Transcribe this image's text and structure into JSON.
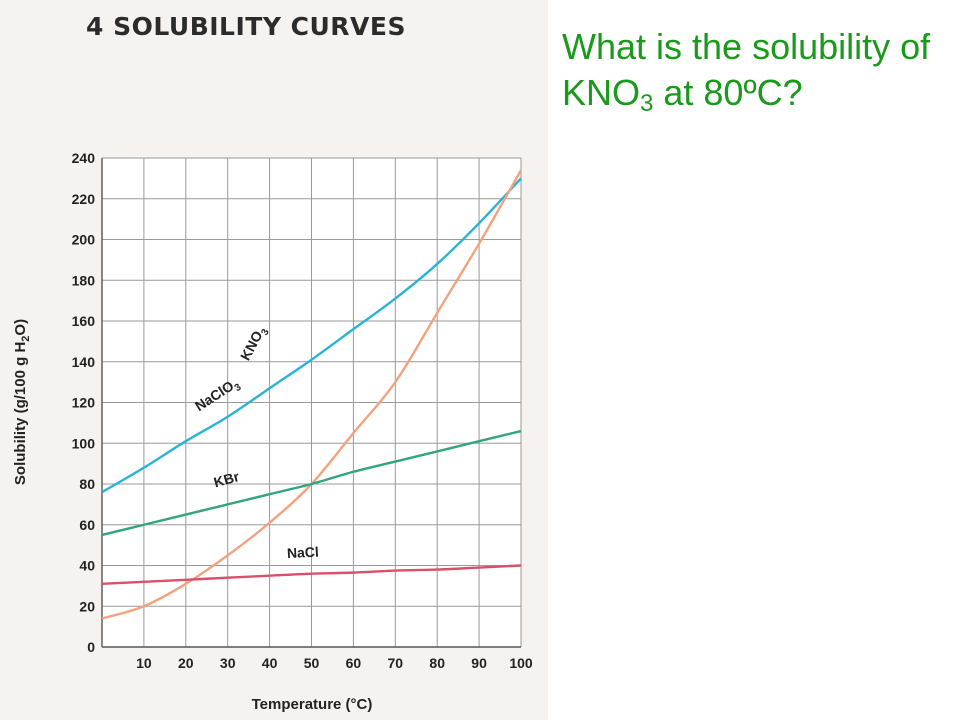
{
  "slide": {
    "question_parts": [
      "What is the solubility of KNO",
      "3",
      " at 80ºC?"
    ]
  },
  "chart_data": {
    "type": "line",
    "title": "4  SOLUBILITY CURVES",
    "xlabel": "Temperature (°C)",
    "ylabel_parts": [
      "Solubility (g/100 g H",
      "2",
      "O)"
    ],
    "xlim": [
      0,
      100
    ],
    "ylim": [
      0,
      240
    ],
    "x_ticks": [
      10,
      20,
      30,
      40,
      50,
      60,
      70,
      80,
      90,
      100
    ],
    "y_ticks": [
      0,
      20,
      40,
      60,
      80,
      100,
      120,
      140,
      160,
      180,
      200,
      220,
      240
    ],
    "grid": true,
    "series": [
      {
        "name": "NaClO3",
        "label_parts": [
          "NaClO",
          "3"
        ],
        "color": "#2ab3d6",
        "x": [
          0,
          10,
          20,
          30,
          40,
          50,
          60,
          70,
          80,
          90,
          100
        ],
        "y": [
          76,
          88,
          101,
          113,
          127,
          141,
          156,
          171,
          188,
          208,
          230
        ]
      },
      {
        "name": "KNO3",
        "label_parts": [
          "KNO",
          "3"
        ],
        "color": "#f2a37e",
        "x": [
          0,
          10,
          20,
          30,
          40,
          50,
          60,
          70,
          80,
          90,
          100
        ],
        "y": [
          14,
          20,
          31,
          45,
          61,
          80,
          105,
          130,
          164,
          198,
          234
        ]
      },
      {
        "name": "KBr",
        "label_parts": [
          "KBr"
        ],
        "color": "#30a67a",
        "x": [
          0,
          10,
          20,
          30,
          40,
          50,
          60,
          70,
          80,
          90,
          100
        ],
        "y": [
          55,
          60,
          65,
          70,
          75,
          80,
          86,
          91,
          96,
          101,
          106
        ]
      },
      {
        "name": "NaCl",
        "label_parts": [
          "NaCl"
        ],
        "color": "#d9506a",
        "x": [
          0,
          10,
          20,
          30,
          40,
          50,
          60,
          70,
          80,
          90,
          100
        ],
        "y": [
          31,
          32,
          33,
          34,
          35,
          36,
          36.5,
          37.5,
          38,
          39,
          40
        ]
      }
    ]
  }
}
